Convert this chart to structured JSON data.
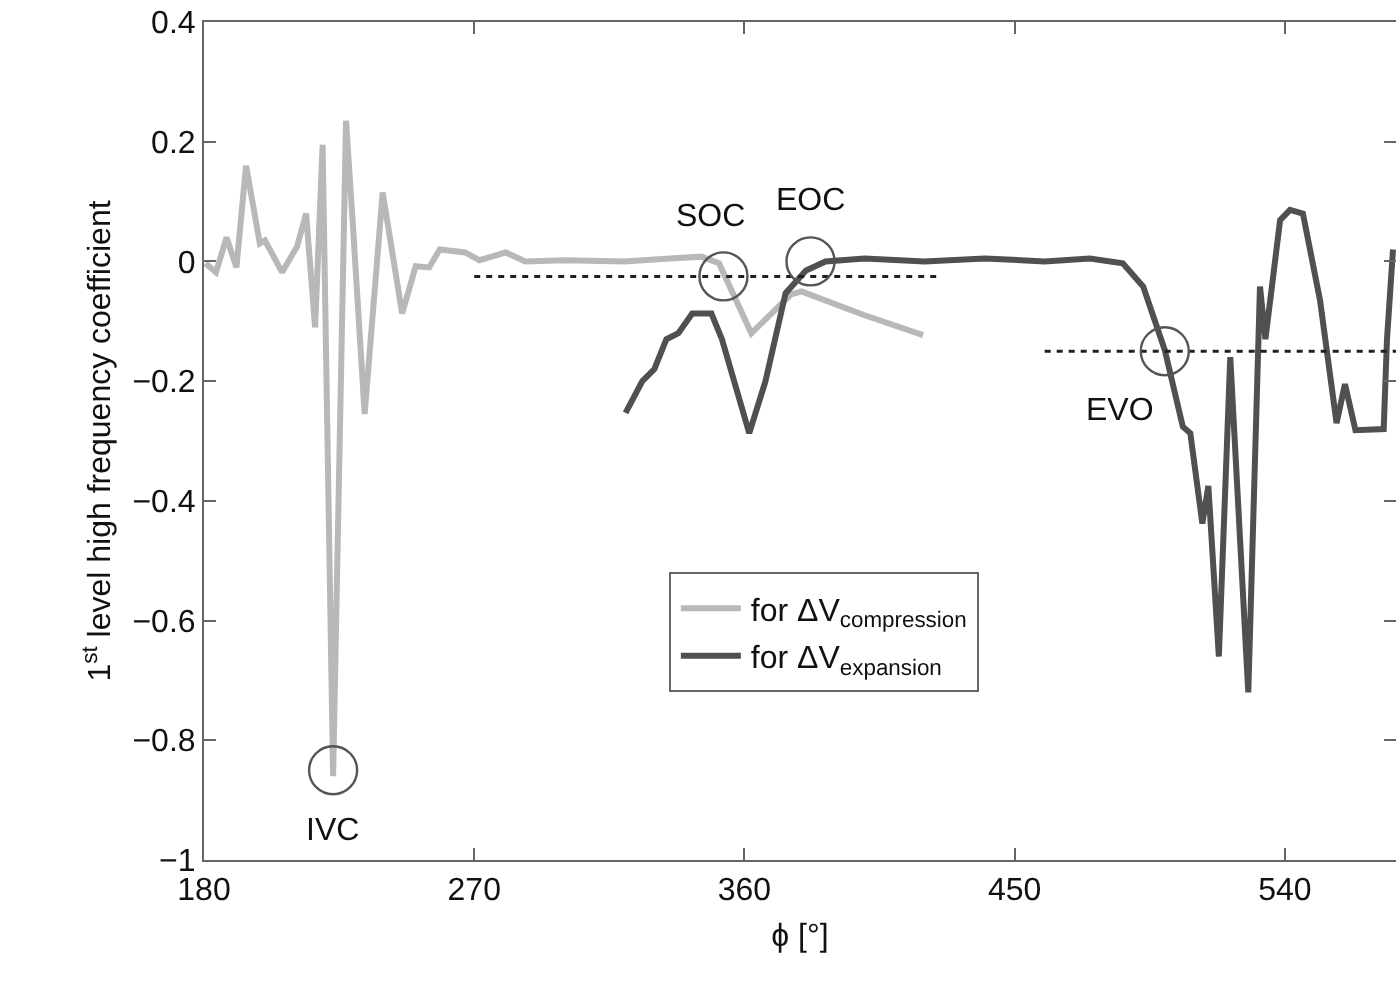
{
  "chart_data": {
    "type": "line",
    "xlabel": "ϕ [°]",
    "ylabel": "1$^{st}$ level high frequency coefficient",
    "xlim": [
      180,
      577
    ],
    "xticks": [
      180,
      270,
      360,
      450,
      540
    ],
    "ylim": [
      -1,
      0.4
    ],
    "yticks": [
      -1,
      -0.8,
      -0.6,
      -0.4,
      -0.2,
      0,
      0.2,
      0.4
    ],
    "grid": false,
    "legend": "bottom",
    "line_style": "solid",
    "marker": "none",
    "series": [
      {
        "name": "for ΔV$_{compression}$",
        "color": "#b8b8b8",
        "x": [
          180.5,
          184,
          187.5,
          190.8,
          194,
          198.6,
          200.3,
          206,
          211,
          214,
          217,
          219.5,
          223,
          227.3,
          229.6,
          233.5,
          239.5,
          246,
          250.5,
          255,
          258.5,
          267,
          271.7,
          280.5,
          287,
          300,
          320,
          335,
          345.7,
          351.5,
          362.3,
          375.5,
          379,
          400,
          419.5
        ],
        "values": [
          -0.003,
          -0.018,
          0.04,
          -0.01,
          0.16,
          0.03,
          0.035,
          -0.018,
          0.025,
          0.08,
          -0.11,
          0.195,
          -0.86,
          0.235,
          0.06,
          -0.255,
          0.115,
          -0.087,
          -0.008,
          -0.01,
          0.02,
          0.015,
          0.002,
          0.015,
          0,
          0.002,
          0,
          0.005,
          0.008,
          -0.003,
          -0.12,
          -0.055,
          -0.05,
          -0.09,
          -0.123
        ]
      },
      {
        "name": "for ΔV$_{expansion}$",
        "color": "#505050",
        "x": [
          320.4,
          326,
          330,
          334,
          338,
          342.6,
          349,
          352.5,
          361.6,
          367,
          373.7,
          380.5,
          387,
          400,
          420,
          440,
          460,
          475,
          486,
          492.8,
          500,
          506,
          508.5,
          512.5,
          514.5,
          518,
          521.8,
          527.8,
          531.7,
          533.5,
          538.4,
          541.7,
          546,
          551.7,
          557.2,
          560,
          563.5,
          572.9,
          574,
          576
        ],
        "values": [
          -0.253,
          -0.2,
          -0.18,
          -0.13,
          -0.12,
          -0.087,
          -0.087,
          -0.13,
          -0.287,
          -0.2,
          -0.053,
          -0.015,
          0,
          0.005,
          0,
          0.005,
          0,
          0.005,
          -0.003,
          -0.042,
          -0.148,
          -0.276,
          -0.287,
          -0.438,
          -0.375,
          -0.66,
          -0.16,
          -0.72,
          -0.042,
          -0.13,
          0.069,
          0.086,
          0.08,
          -0.065,
          -0.27,
          -0.205,
          -0.282,
          -0.28,
          -0.13,
          0.02
        ]
      },
      {
        "color": "#202020",
        "line_style": "dotted",
        "x": [
          270,
          425
        ],
        "values": [
          -0.025,
          -0.025
        ]
      },
      {
        "color": "#202020",
        "line_style": "dotted",
        "x": [
          460,
          577
        ],
        "values": [
          -0.15,
          -0.15
        ]
      }
    ],
    "annotations": [
      {
        "text": "IVC",
        "x": 223,
        "y": -0.85
      },
      {
        "text": "SOC",
        "x": 353,
        "y": -0.025
      },
      {
        "text": "EOC",
        "x": 382,
        "y": 0
      },
      {
        "text": "EVO",
        "x": 500,
        "y": -0.15
      }
    ]
  }
}
